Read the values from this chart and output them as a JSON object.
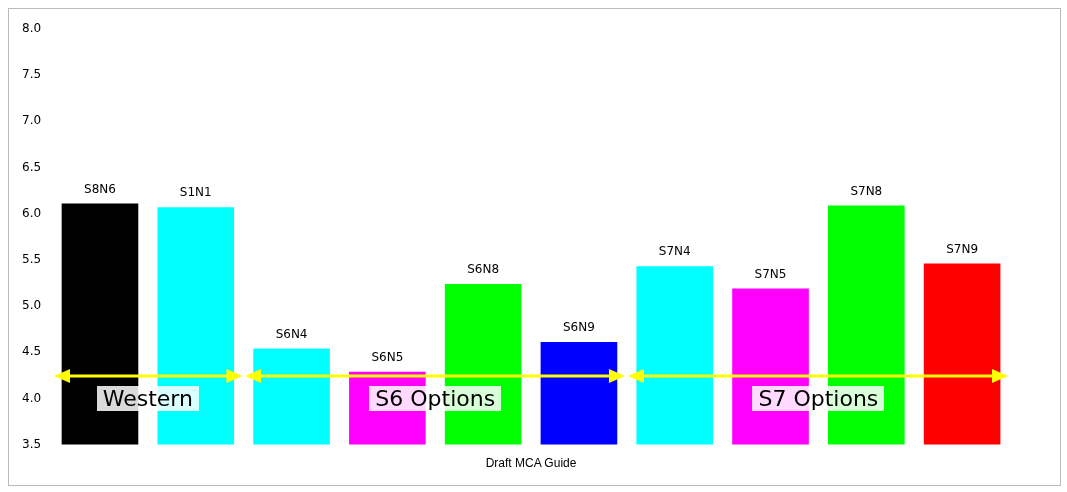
{
  "chart_data": {
    "type": "bar",
    "xlabel": "Draft MCA Guide",
    "categories": [
      "S8N6",
      "S1N1",
      "S6N4",
      "S6N5",
      "S6N8",
      "S6N9",
      "S7N4",
      "S7N5",
      "S7N8",
      "S7N9"
    ],
    "values": [
      6.11,
      6.07,
      4.54,
      4.29,
      5.24,
      4.61,
      5.43,
      5.19,
      6.09,
      5.46
    ],
    "colors": [
      "#000000",
      "#00ffff",
      "#00ffff",
      "#ff00ff",
      "#00ff00",
      "#0000ff",
      "#00ffff",
      "#ff00ff",
      "#00ff00",
      "#ff0000"
    ],
    "ylim": [
      3.5,
      8.0
    ],
    "yticks": [
      {
        "value": 3.5,
        "label": "3.5"
      },
      {
        "value": 4,
        "label": "4.0"
      },
      {
        "value": 4.5,
        "label": "4.5"
      },
      {
        "value": 5,
        "label": "5.0"
      },
      {
        "value": 5.5,
        "label": "5.5"
      },
      {
        "value": 6,
        "label": "6.0"
      },
      {
        "value": 6.5,
        "label": "6.5"
      },
      {
        "value": 7,
        "label": "7.0"
      },
      {
        "value": 7.5,
        "label": "7.5"
      },
      {
        "value": 8,
        "label": "8.0"
      }
    ],
    "grid": false,
    "legend": false,
    "annotations": [
      "Western",
      "S6 Options",
      "S7 Options"
    ]
  }
}
